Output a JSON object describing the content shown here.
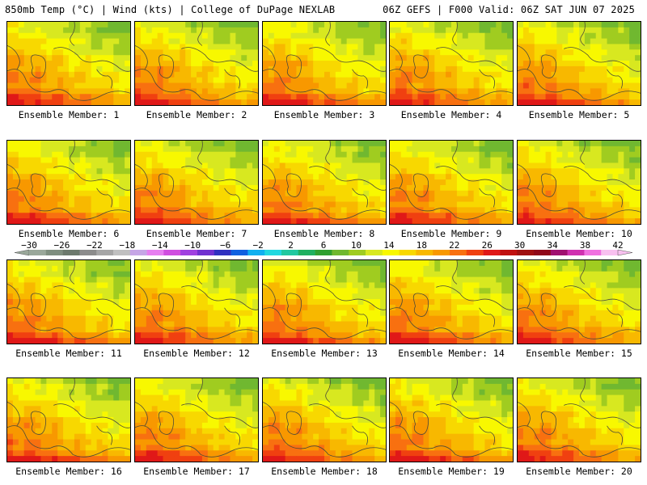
{
  "header": {
    "left": "850mb Temp (°C) | Wind (kts) | College of DuPage NEXLAB",
    "right": "06Z GEFS | F000 Valid: 06Z SAT JUN 07 2025"
  },
  "panels": [
    {
      "caption": "Ensemble Member: 1"
    },
    {
      "caption": "Ensemble Member: 2"
    },
    {
      "caption": "Ensemble Member: 3"
    },
    {
      "caption": "Ensemble Member: 4"
    },
    {
      "caption": "Ensemble Member: 5"
    },
    {
      "caption": "Ensemble Member: 6"
    },
    {
      "caption": "Ensemble Member: 7"
    },
    {
      "caption": "Ensemble Member: 8"
    },
    {
      "caption": "Ensemble Member: 9"
    },
    {
      "caption": "Ensemble Member: 10"
    },
    {
      "caption": "Ensemble Member: 11"
    },
    {
      "caption": "Ensemble Member: 12"
    },
    {
      "caption": "Ensemble Member: 13"
    },
    {
      "caption": "Ensemble Member: 14"
    },
    {
      "caption": "Ensemble Member: 15"
    },
    {
      "caption": "Ensemble Member: 16"
    },
    {
      "caption": "Ensemble Member: 17"
    },
    {
      "caption": "Ensemble Member: 18"
    },
    {
      "caption": "Ensemble Member: 19"
    },
    {
      "caption": "Ensemble Member: 20"
    }
  ],
  "colorbar": {
    "labels": [
      "-30",
      "-26",
      "-22",
      "-18",
      "-14",
      "-10",
      "-6",
      "-2",
      "2",
      "6",
      "10",
      "14",
      "18",
      "22",
      "26",
      "30",
      "34",
      "38",
      "42"
    ],
    "colors": [
      "#9aa89a",
      "#7f8f7f",
      "#6d7a6d",
      "#8c8c8c",
      "#a6a6a6",
      "#c0c0c0",
      "#c6a6e6",
      "#e67ef0",
      "#d04ee0",
      "#a040e0",
      "#7030d0",
      "#3030c0",
      "#1060e0",
      "#10b0f0",
      "#20d8e0",
      "#20c8a0",
      "#20b060",
      "#30a030",
      "#70b830",
      "#a0cc20",
      "#d8e820",
      "#f8f800",
      "#f8d800",
      "#f8b800",
      "#f89800",
      "#f87010",
      "#f04010",
      "#e01818",
      "#c01010",
      "#a01010",
      "#900818",
      "#a01070",
      "#d030b0",
      "#f070e0",
      "#f8c0f0"
    ]
  }
}
